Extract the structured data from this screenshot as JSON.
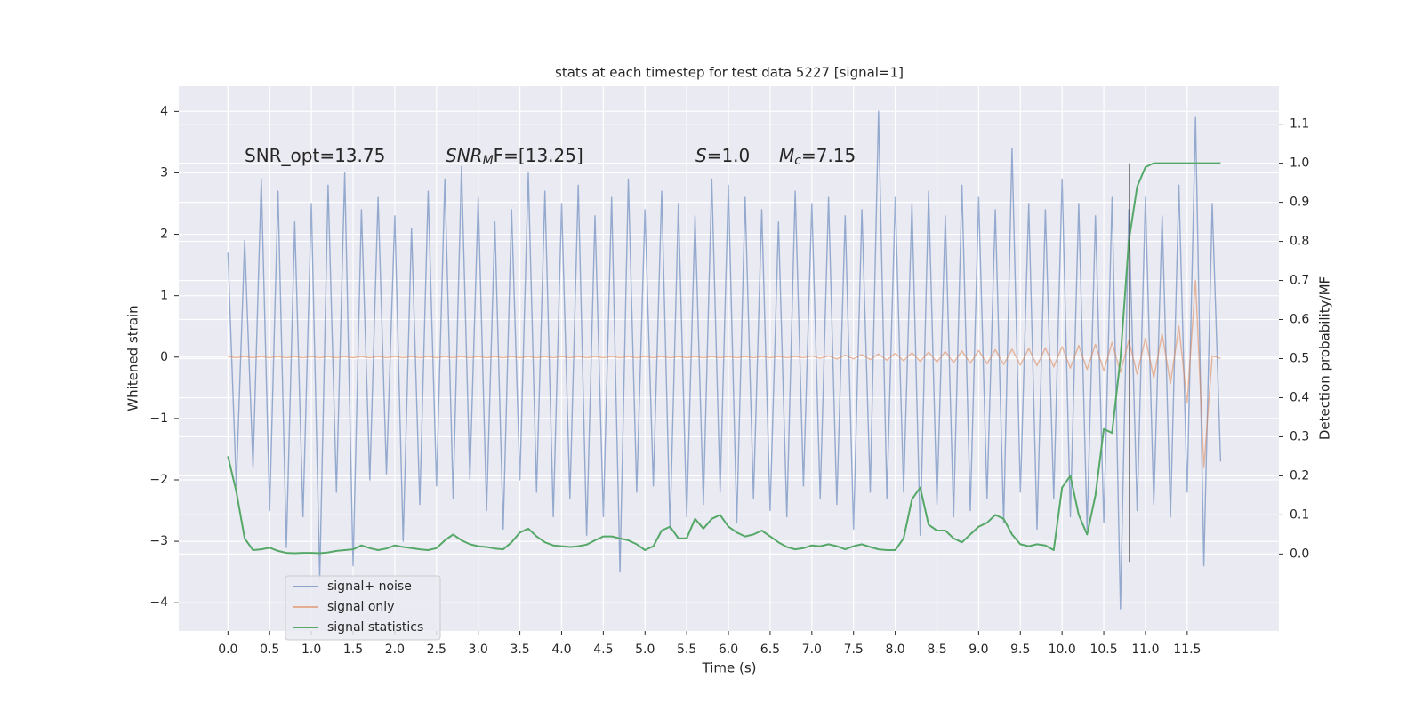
{
  "chart_data": {
    "type": "line",
    "title": "stats at each timestep for test data 5227 [signal=1]",
    "xlabel": "Time (s)",
    "ylabel": "Whitened strain",
    "y2label": "Detection probability/MF",
    "annotations": [
      {
        "text": "SNR_opt=13.75"
      },
      {
        "text": "SNR",
        "sub": "M",
        "rest": "F=[13.25]"
      },
      {
        "text": "S",
        "rest": "=1.0"
      },
      {
        "text": "M",
        "sub": "c",
        "rest": "=7.15"
      }
    ],
    "x": [
      0.0,
      0.1,
      0.2,
      0.3,
      0.4,
      0.5,
      0.6,
      0.7,
      0.8,
      0.9,
      1.0,
      1.1,
      1.2,
      1.3,
      1.4,
      1.5,
      1.6,
      1.7,
      1.8,
      1.9,
      2.0,
      2.1,
      2.2,
      2.3,
      2.4,
      2.5,
      2.6,
      2.7,
      2.8,
      2.9,
      3.0,
      3.1,
      3.2,
      3.3,
      3.4,
      3.5,
      3.6,
      3.7,
      3.8,
      3.9,
      4.0,
      4.1,
      4.2,
      4.3,
      4.4,
      4.5,
      4.6,
      4.7,
      4.8,
      4.9,
      5.0,
      5.1,
      5.2,
      5.3,
      5.4,
      5.5,
      5.6,
      5.7,
      5.8,
      5.9,
      6.0,
      6.1,
      6.2,
      6.3,
      6.4,
      6.5,
      6.6,
      6.7,
      6.8,
      6.9,
      7.0,
      7.1,
      7.2,
      7.3,
      7.4,
      7.5,
      7.6,
      7.7,
      7.8,
      7.9,
      8.0,
      8.1,
      8.2,
      8.3,
      8.4,
      8.5,
      8.6,
      8.7,
      8.8,
      8.9,
      9.0,
      9.1,
      9.2,
      9.3,
      9.4,
      9.5,
      9.6,
      9.7,
      9.8,
      9.9,
      10.0,
      10.1,
      10.2,
      10.3,
      10.4,
      10.5,
      10.6,
      10.7,
      10.8,
      10.9,
      11.0,
      11.1,
      11.2,
      11.3,
      11.4,
      11.5,
      11.6,
      11.7,
      11.8,
      11.9
    ],
    "series": [
      {
        "name": "signal+ noise",
        "color": "#4c72b0",
        "axis": "y",
        "values": [
          1.7,
          -2.1,
          1.9,
          -1.8,
          2.9,
          -2.5,
          2.7,
          -3.1,
          2.2,
          -2.6,
          2.5,
          -3.6,
          2.8,
          -2.2,
          3.0,
          -3.4,
          2.4,
          -2.0,
          2.6,
          -1.9,
          2.3,
          -3.0,
          2.1,
          -2.4,
          2.7,
          -2.1,
          2.9,
          -2.3,
          3.1,
          -2.0,
          2.6,
          -2.5,
          2.2,
          -2.8,
          2.4,
          -2.0,
          3.0,
          -2.2,
          2.7,
          -2.6,
          2.5,
          -2.3,
          2.8,
          -2.9,
          2.3,
          -2.6,
          2.6,
          -3.5,
          2.9,
          -2.2,
          2.4,
          -2.1,
          2.7,
          -2.8,
          2.5,
          -2.6,
          2.3,
          -2.4,
          2.9,
          -2.2,
          2.8,
          -2.7,
          2.6,
          -2.3,
          2.4,
          -2.5,
          2.2,
          -2.6,
          2.7,
          -2.1,
          2.5,
          -2.3,
          2.6,
          -2.4,
          2.3,
          -2.8,
          2.4,
          -2.2,
          4.0,
          -2.3,
          2.6,
          -2.2,
          2.5,
          -2.9,
          2.7,
          -2.4,
          2.3,
          -2.6,
          2.8,
          -2.5,
          2.6,
          -2.3,
          2.4,
          -2.7,
          3.4,
          -2.2,
          2.5,
          -2.8,
          2.4,
          -2.3,
          2.9,
          -2.6,
          2.5,
          -2.8,
          2.3,
          -2.7,
          2.6,
          -4.1,
          2.4,
          -2.5,
          2.6,
          -2.4,
          2.3,
          -2.6,
          2.8,
          -2.2,
          3.9,
          -3.4,
          2.5,
          -1.7
        ]
      },
      {
        "name": "signal only",
        "color": "#dd8452",
        "axis": "y",
        "values": [
          0.01,
          -0.01,
          0.01,
          -0.01,
          0.01,
          -0.01,
          0.01,
          -0.01,
          0.01,
          -0.01,
          0.01,
          -0.01,
          0.01,
          -0.01,
          0.01,
          -0.01,
          0.01,
          -0.01,
          0.01,
          -0.01,
          0.01,
          -0.01,
          0.01,
          -0.01,
          0.01,
          -0.01,
          0.01,
          -0.01,
          0.01,
          -0.01,
          0.01,
          -0.01,
          0.01,
          -0.01,
          0.01,
          -0.01,
          0.01,
          -0.01,
          0.01,
          -0.01,
          0.01,
          -0.01,
          0.01,
          -0.01,
          0.01,
          -0.01,
          0.01,
          -0.01,
          0.01,
          -0.01,
          0.01,
          -0.01,
          0.01,
          -0.01,
          0.01,
          -0.01,
          0.01,
          -0.01,
          0.01,
          -0.01,
          0.01,
          -0.01,
          0.01,
          -0.01,
          0.01,
          -0.01,
          0.01,
          -0.01,
          0.01,
          -0.01,
          0.02,
          -0.02,
          0.02,
          -0.03,
          0.03,
          -0.03,
          0.04,
          -0.04,
          0.05,
          -0.05,
          0.06,
          -0.06,
          0.07,
          -0.07,
          0.08,
          -0.08,
          0.09,
          -0.09,
          0.1,
          -0.1,
          0.11,
          -0.11,
          0.12,
          -0.12,
          0.13,
          -0.13,
          0.14,
          -0.14,
          0.15,
          -0.16,
          0.17,
          -0.18,
          0.19,
          -0.2,
          0.21,
          -0.22,
          0.24,
          -0.25,
          0.27,
          -0.28,
          0.31,
          -0.34,
          0.38,
          -0.43,
          0.5,
          -0.75,
          1.25,
          -1.8,
          0.02,
          -0.02
        ]
      },
      {
        "name": "signal statistics",
        "color": "#55a868",
        "axis": "y2",
        "values": [
          0.25,
          0.16,
          0.04,
          0.01,
          0.012,
          0.016,
          0.008,
          0.003,
          0.002,
          0.003,
          0.003,
          0.002,
          0.004,
          0.008,
          0.01,
          0.012,
          0.022,
          0.015,
          0.01,
          0.014,
          0.022,
          0.018,
          0.015,
          0.012,
          0.01,
          0.015,
          0.035,
          0.05,
          0.035,
          0.025,
          0.02,
          0.018,
          0.014,
          0.012,
          0.03,
          0.055,
          0.065,
          0.045,
          0.03,
          0.022,
          0.02,
          0.018,
          0.02,
          0.024,
          0.035,
          0.045,
          0.045,
          0.04,
          0.035,
          0.025,
          0.01,
          0.02,
          0.06,
          0.07,
          0.04,
          0.04,
          0.09,
          0.065,
          0.09,
          0.1,
          0.07,
          0.055,
          0.045,
          0.05,
          0.06,
          0.045,
          0.03,
          0.018,
          0.012,
          0.015,
          0.022,
          0.02,
          0.025,
          0.02,
          0.012,
          0.02,
          0.025,
          0.018,
          0.012,
          0.01,
          0.01,
          0.04,
          0.14,
          0.17,
          0.075,
          0.06,
          0.06,
          0.04,
          0.03,
          0.05,
          0.07,
          0.08,
          0.1,
          0.09,
          0.05,
          0.025,
          0.02,
          0.025,
          0.022,
          0.01,
          0.17,
          0.2,
          0.1,
          0.05,
          0.15,
          0.32,
          0.31,
          0.5,
          0.8,
          0.94,
          0.99,
          1.0,
          1.0,
          1.0,
          1.0,
          1.0,
          1.0,
          1.0,
          1.0,
          1.0
        ]
      }
    ],
    "marker_line": {
      "x": 10.81,
      "y2": [
        -0.02,
        1.0
      ],
      "color": "#444444"
    },
    "xlim": [
      -0.59,
      12.6
    ],
    "xticks": [
      {
        "value": 0,
        "label": "0.0"
      },
      0.5,
      {
        "value": 1,
        "label": "1.0"
      },
      1.5,
      {
        "value": 2,
        "label": "2.0"
      },
      2.5,
      {
        "value": 3,
        "label": "3.0"
      },
      3.5,
      {
        "value": 4,
        "label": "4.0"
      },
      4.5,
      {
        "value": 5,
        "label": "5.0"
      },
      5.5,
      {
        "value": 6,
        "label": "6.0"
      },
      6.5,
      {
        "value": 7,
        "label": "7.0"
      },
      7.5,
      {
        "value": 8,
        "label": "8.0"
      },
      8.5,
      {
        "value": 9,
        "label": "9.0"
      },
      9.5,
      {
        "value": 10,
        "label": "10.0"
      },
      10.5,
      {
        "value": 11,
        "label": "11.0"
      },
      11.5
    ],
    "ylim": [
      -4.46,
      4.41
    ],
    "yticks": [
      {
        "value": -4,
        "label": "−4"
      },
      {
        "value": -3,
        "label": "−3"
      },
      {
        "value": -2,
        "label": "−2"
      },
      {
        "value": -1,
        "label": "−1"
      },
      0,
      1,
      2,
      3,
      4
    ],
    "y2lim": [
      -0.197,
      1.197
    ],
    "y2ticks": [
      {
        "value": 0,
        "label": "0.0"
      },
      0.1,
      0.2,
      0.3,
      0.4,
      0.5,
      0.6,
      0.7,
      0.8,
      0.9,
      {
        "value": 1,
        "label": "1.0"
      },
      1.1
    ],
    "grid": true,
    "legend": "lower left",
    "background": "#eaeaf2"
  }
}
